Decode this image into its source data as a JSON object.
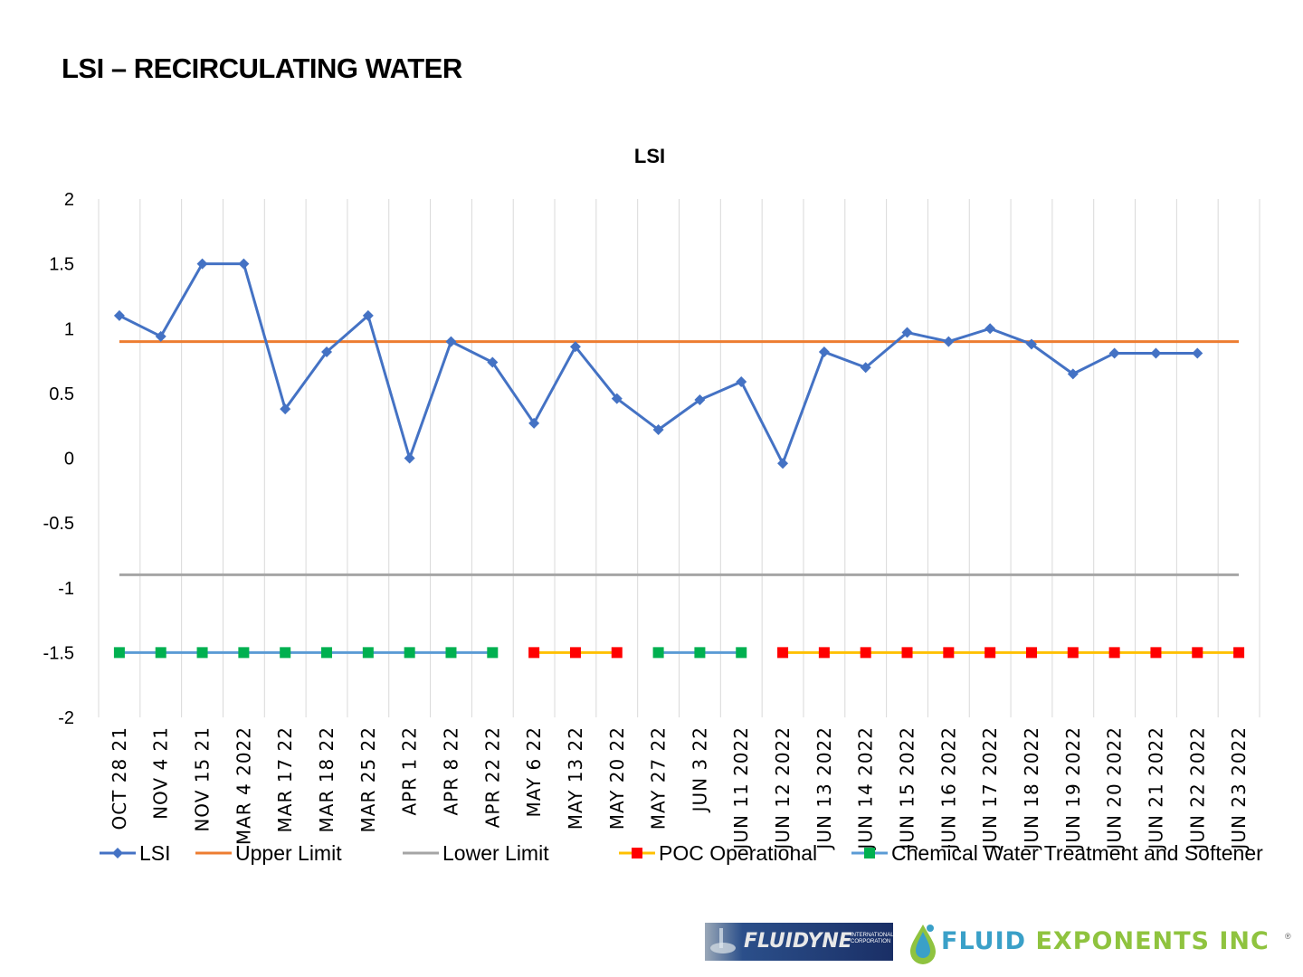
{
  "page": {
    "title": "LSI – RECIRCULATING WATER"
  },
  "chart_data": {
    "type": "line",
    "title": "LSI",
    "xlabel": "",
    "ylabel": "",
    "ylim": [
      -2,
      2
    ],
    "yticks": [
      2,
      1.5,
      1,
      0.5,
      0,
      -0.5,
      -1,
      -1.5,
      -2
    ],
    "ytick_labels": [
      "2",
      "1.5",
      "1",
      "0.5",
      "0",
      "-0.5",
      "-1",
      "-1.5",
      "-2"
    ],
    "categories": [
      "OCT  28  21",
      "NOV  4  21",
      "NOV  15  21",
      "MAR  4  2022",
      "MAR  17  22",
      "MAR  18  22",
      "MAR  25  22",
      "APR  1  22",
      "APR  8  22",
      "APR  22  22",
      "MAY  6  22",
      "MAY  13  22",
      "MAY  20  22",
      "MAY  27  22",
      "JUN  3  22",
      "JUN  11  2022",
      "JUN  12  2022",
      "JUN  13  2022",
      "JUN  14  2022",
      "JUN  15  2022",
      "JUN  16  2022",
      "JUN  17  2022",
      "JUN  18  2022",
      "JUN  19  2022",
      "JUN  20  2022",
      "JUN  21  2022",
      "JUN  22  2022",
      "JUN  23  2022"
    ],
    "series": [
      {
        "name": "LSI",
        "color": "#4472C4",
        "marker": "diamond",
        "values": [
          1.1,
          0.94,
          1.5,
          1.5,
          0.38,
          0.82,
          1.1,
          0.0,
          0.9,
          0.74,
          0.27,
          0.86,
          0.46,
          0.22,
          0.45,
          0.59,
          -0.04,
          0.82,
          0.7,
          0.97,
          0.9,
          1.0,
          0.88,
          0.65,
          0.81,
          0.81,
          0.81,
          null
        ]
      },
      {
        "name": "Upper Limit",
        "color": "#ED7D31",
        "marker": "none",
        "values": [
          0.9,
          0.9,
          0.9,
          0.9,
          0.9,
          0.9,
          0.9,
          0.9,
          0.9,
          0.9,
          0.9,
          0.9,
          0.9,
          0.9,
          0.9,
          0.9,
          0.9,
          0.9,
          0.9,
          0.9,
          0.9,
          0.9,
          0.9,
          0.9,
          0.9,
          0.9,
          0.9,
          0.9
        ]
      },
      {
        "name": "Lower Limit",
        "color": "#A5A5A5",
        "marker": "none",
        "values": [
          -0.9,
          -0.9,
          -0.9,
          -0.9,
          -0.9,
          -0.9,
          -0.9,
          -0.9,
          -0.9,
          -0.9,
          -0.9,
          -0.9,
          -0.9,
          -0.9,
          -0.9,
          -0.9,
          -0.9,
          -0.9,
          -0.9,
          -0.9,
          -0.9,
          -0.9,
          -0.9,
          -0.9,
          -0.9,
          -0.9,
          -0.9,
          -0.9
        ]
      },
      {
        "name": "POC Operational",
        "color": "#FFC000",
        "marker": "square",
        "marker_color": "#FF0000",
        "values": [
          null,
          null,
          null,
          null,
          null,
          null,
          null,
          null,
          null,
          null,
          -1.5,
          -1.5,
          -1.5,
          null,
          null,
          null,
          -1.5,
          -1.5,
          -1.5,
          -1.5,
          -1.5,
          -1.5,
          -1.5,
          -1.5,
          -1.5,
          -1.5,
          -1.5,
          -1.5
        ]
      },
      {
        "name": "Chemical Water Treatment and Softener",
        "color": "#5B9BD5",
        "marker": "square",
        "marker_color": "#00B050",
        "values": [
          -1.5,
          -1.5,
          -1.5,
          -1.5,
          -1.5,
          -1.5,
          -1.5,
          -1.5,
          -1.5,
          -1.5,
          null,
          null,
          null,
          -1.5,
          -1.5,
          -1.5,
          null,
          null,
          null,
          null,
          null,
          null,
          null,
          null,
          null,
          null,
          null,
          null
        ]
      }
    ],
    "legend_position": "bottom",
    "grid": "vertical"
  },
  "logos": {
    "fluidyne": {
      "text": "FLUIDYNE",
      "subtext": "INTERNATIONAL CORPORATION"
    },
    "fluid_exponents": {
      "text_part1": "FLUID ",
      "text_part2": "EXPONENTS",
      "text_part3": " INC",
      "tm": "®"
    }
  }
}
